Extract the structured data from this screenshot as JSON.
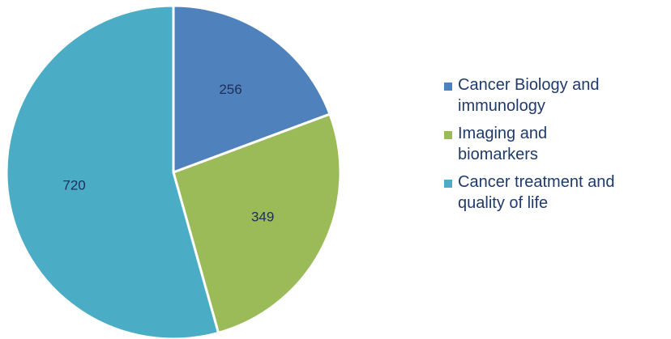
{
  "chart_data": {
    "type": "pie",
    "categories": [
      "Cancer Biology and immunology",
      "Imaging and biomarkers",
      "Cancer treatment and quality of life"
    ],
    "values": [
      256,
      349,
      720
    ],
    "colors": [
      "#4f81bd",
      "#9bbb59",
      "#4bacc6"
    ],
    "legend": "right"
  }
}
